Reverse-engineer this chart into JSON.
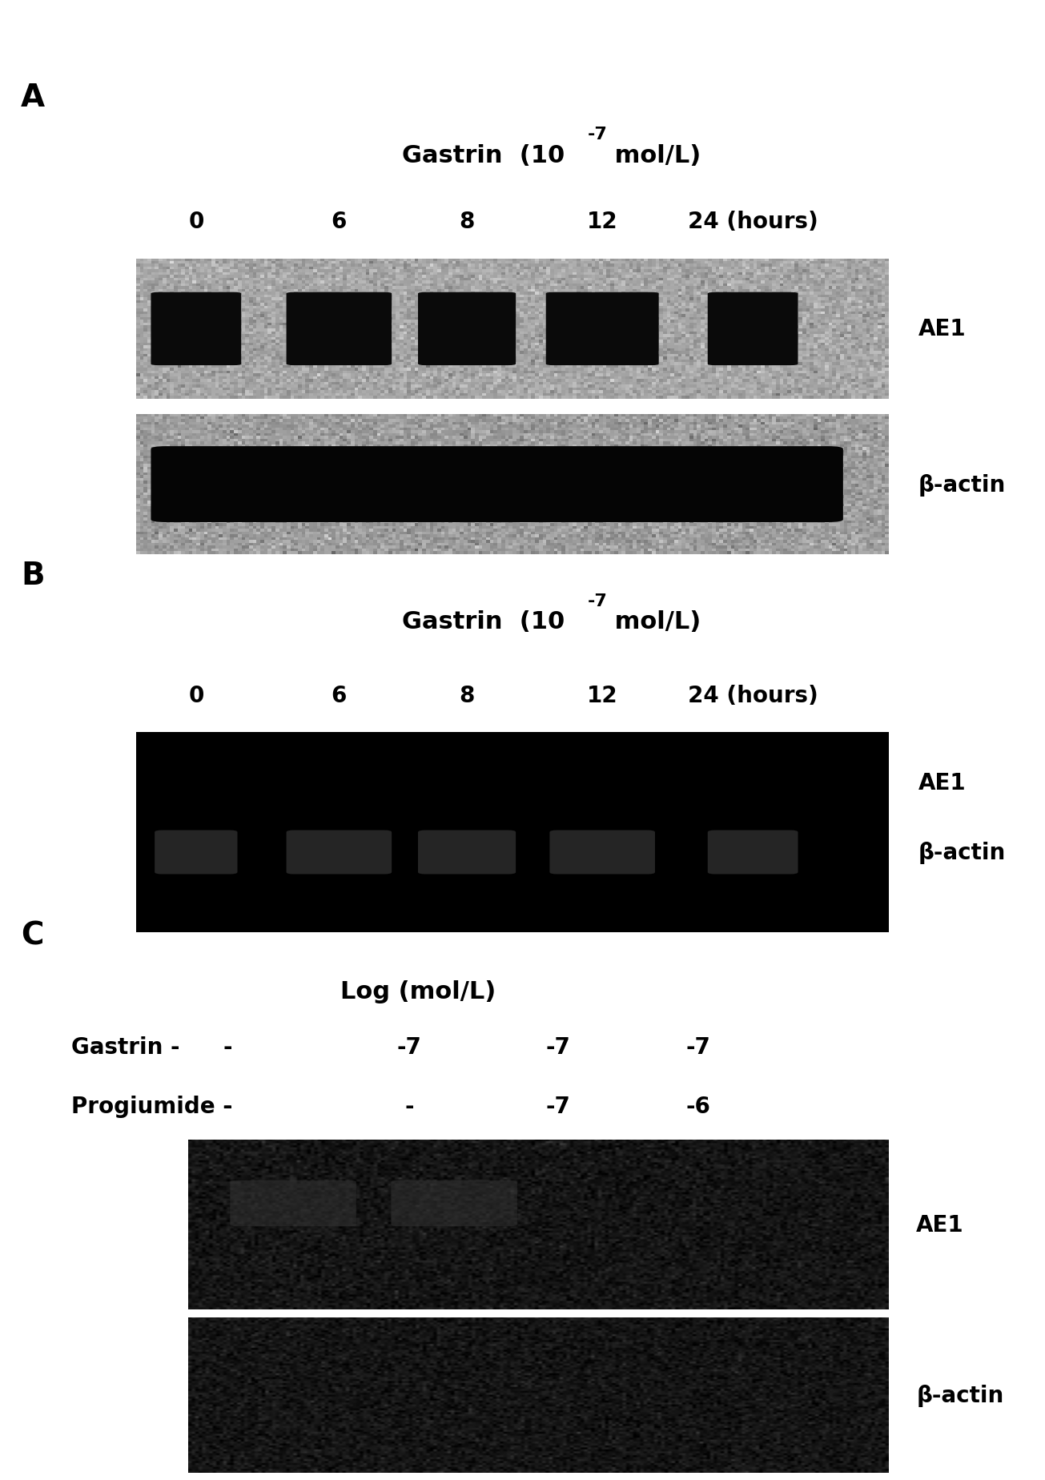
{
  "panel_A": {
    "label": "A",
    "title_main": "Gastrin  (10",
    "title_exp": "-7",
    "title_suffix": " mol/L)",
    "time_labels": [
      "0",
      "6",
      "8",
      "12",
      "24 (hours)"
    ],
    "band_label1": "AE1",
    "band_label2": "β-actin",
    "gel_bg_color": "#888888",
    "band_color": "#111111"
  },
  "panel_B": {
    "label": "B",
    "title_main": "Gastrin  (10",
    "title_exp": "-7",
    "title_suffix": " mol/L)",
    "time_labels": [
      "0",
      "6",
      "8",
      "12",
      "24 (hours)"
    ],
    "band_label1": "AE1",
    "band_label2": "β-actin",
    "gel_bg_color": "#050505",
    "band_color": "#555555"
  },
  "panel_C": {
    "label": "C",
    "title": "Log (mol/L)",
    "row1_label": "Gastrin",
    "row1_vals": [
      "-",
      "-7",
      "-7",
      "-7"
    ],
    "row2_label": "Progiumide",
    "row2_vals": [
      "-",
      "-",
      "-7",
      "-6"
    ],
    "band_label1": "AE1",
    "band_label2": "β-actin",
    "gel_bg_color": "#0a0a0a",
    "band_color": "#404040"
  },
  "bg_color": "#ffffff",
  "text_color": "#000000"
}
